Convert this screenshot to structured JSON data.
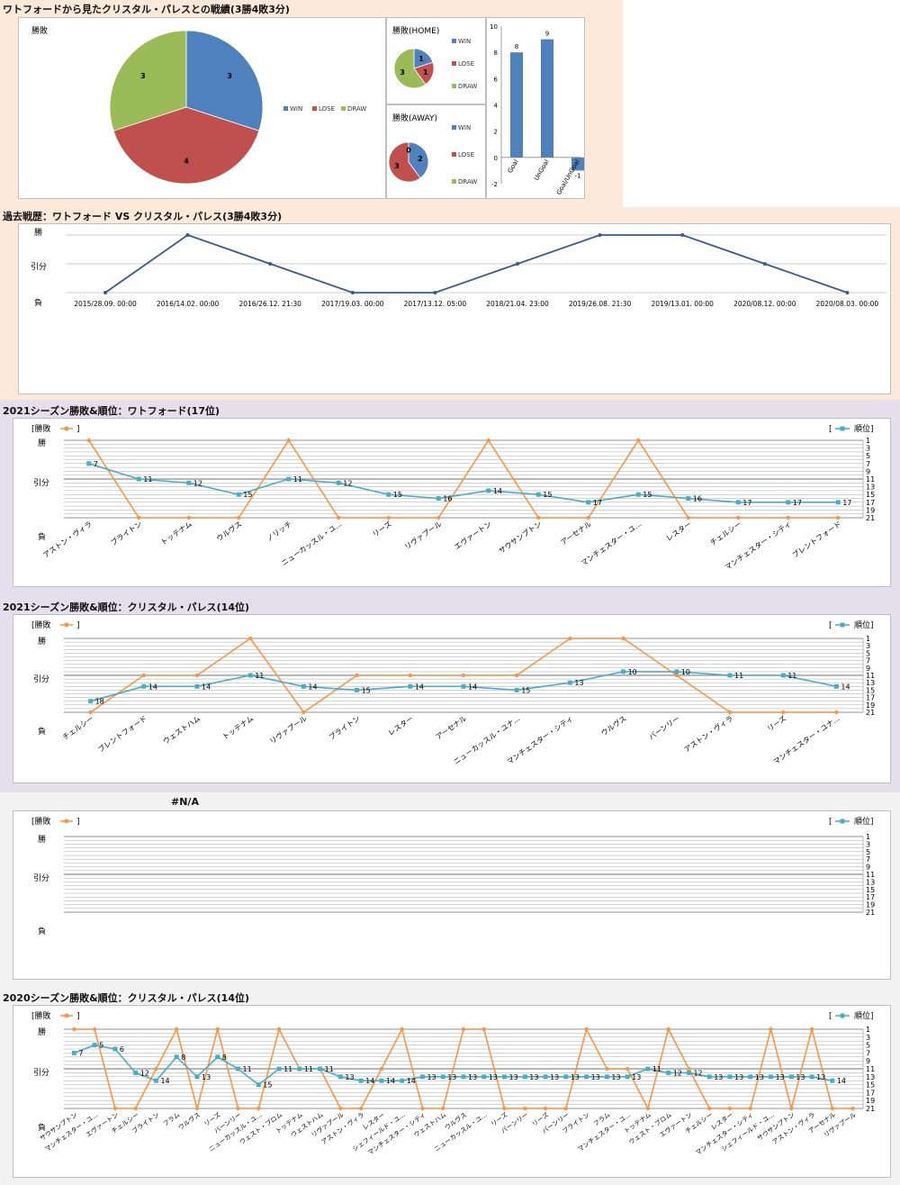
{
  "sections": {
    "summary_title": "ワトフォードから見たクリスタル・パレスとの戦績(3勝4敗3分)",
    "history_title": "過去戦歴：ワトフォード VS クリスタル・パレス(3勝4敗3分)",
    "watford_title": "2021シーズン勝敗&順位：ワトフォード(17位)",
    "palace_title": "2021シーズン勝敗&順位：クリスタル・パレス(14位)",
    "na_title": "#N/A",
    "palace2020_title": "2020シーズン勝敗&順位：クリスタル・パレス(14位)"
  },
  "legend_labels": {
    "result": "[勝敗",
    "rank": "順位]",
    "close": "]",
    "open": "["
  },
  "colors": {
    "win": "#4f81bd",
    "lose": "#c0504d",
    "draw": "#9bbb59",
    "line": "#1f3864",
    "orange": "#f79646",
    "teal": "#4bacc6"
  },
  "y_cat_labels": [
    "勝",
    "引分",
    "負"
  ],
  "rank_ticks": [
    "1",
    "3",
    "5",
    "7",
    "9",
    "11",
    "13",
    "15",
    "17",
    "19",
    "21"
  ],
  "chart_data": [
    {
      "id": "pie_total",
      "type": "pie",
      "title": "勝敗",
      "categories": [
        "WIN",
        "LOSE",
        "DRAW"
      ],
      "values": [
        3,
        4,
        3
      ]
    },
    {
      "id": "pie_home",
      "type": "pie",
      "title": "勝敗(HOME)",
      "categories": [
        "WIN",
        "LOSE",
        "DRAW"
      ],
      "values": [
        1,
        1,
        3
      ]
    },
    {
      "id": "pie_away",
      "type": "pie",
      "title": "勝敗(AWAY)",
      "categories": [
        "WIN",
        "LOSE",
        "DRAW"
      ],
      "values": [
        2,
        3,
        0
      ]
    },
    {
      "id": "goals",
      "type": "bar",
      "categories": [
        "Goal",
        "UnGoal",
        "Goal/UnGoal"
      ],
      "values": [
        8,
        9,
        -1
      ],
      "ylim": [
        -2,
        10
      ],
      "yticks": [
        10,
        8,
        6,
        4,
        2,
        0,
        -2
      ]
    },
    {
      "id": "history",
      "type": "line",
      "x": [
        "2015/28.09. 00:00",
        "2016/14.02. 00:00",
        "2016/26.12. 21:30",
        "2017/19.03. 00:00",
        "2017/13.12. 05:00",
        "2018/21.04. 23:00",
        "2019/26.08. 21:30",
        "2019/13.01. 00:00",
        "2020/08.12. 00:00",
        "2020/08.03. 00:00"
      ],
      "results": [
        "負",
        "勝",
        "引分",
        "負",
        "負",
        "引分",
        "勝",
        "勝",
        "引分",
        "負"
      ]
    },
    {
      "id": "watford2021",
      "type": "line",
      "x": [
        "アストン・ヴィラ",
        "ブライトン",
        "トッテナム",
        "ウルヴス",
        "ノリッチ",
        "ニューカッスル・ユ...",
        "リーズ",
        "リヴァプール",
        "エヴァートン",
        "サウサンプトン",
        "アーセナル",
        "マンチェスター・ユ...",
        "レスター",
        "チェルシー",
        "マンチェスター・シティ",
        "ブレントフォード"
      ],
      "series": [
        {
          "name": "勝敗",
          "values": [
            "勝",
            "負",
            "負",
            "負",
            "勝",
            "負",
            "負",
            "負",
            "勝",
            "負",
            "負",
            "勝",
            "負",
            "負",
            "負",
            "負"
          ]
        },
        {
          "name": "順位",
          "values": [
            7,
            11,
            12,
            15,
            11,
            12,
            15,
            16,
            14,
            15,
            17,
            15,
            16,
            17,
            17,
            17
          ]
        }
      ]
    },
    {
      "id": "palace2021",
      "type": "line",
      "x": [
        "チェルシー",
        "ブレントフォード",
        "ウェストハム",
        "トッテナム",
        "リヴァプール",
        "ブライトン",
        "レスター",
        "アーセナル",
        "ニューカッスル・ユナ...",
        "マンチェスター・シティ",
        "ウルヴス",
        "バーンリー",
        "アストン・ヴィラ",
        "リーズ",
        "マンチェスター・ユナ..."
      ],
      "series": [
        {
          "name": "勝敗",
          "values": [
            "負",
            "引分",
            "引分",
            "勝",
            "負",
            "引分",
            "引分",
            "引分",
            "引分",
            "勝",
            "勝",
            "引分",
            "負",
            "負",
            "負"
          ]
        },
        {
          "name": "順位",
          "values": [
            18,
            14,
            14,
            11,
            14,
            15,
            14,
            14,
            15,
            13,
            10,
            10,
            11,
            11,
            14
          ]
        }
      ]
    },
    {
      "id": "na_chart",
      "type": "line",
      "x": [],
      "series": [
        {
          "name": "勝敗",
          "values": []
        },
        {
          "name": "順位",
          "values": []
        }
      ]
    },
    {
      "id": "palace2020",
      "type": "line",
      "x": [
        "サウサンプトン",
        "マンチェスター・ユ...",
        "エヴァートン",
        "チェルシー",
        "ブライトン",
        "フラム",
        "ウルヴス",
        "リーズ",
        "バーンリー",
        "ニューカッスル・ユ...",
        "ウェスト・ブロム",
        "トッテナム",
        "ウェストハム",
        "リヴァプール",
        "アストン・ヴィラ",
        "レスター",
        "シェフィールド・ユ...",
        "マンチェスター・シティ",
        "ウェストハム",
        "ウルヴス",
        "ニューカッスル・ユ...",
        "リーズ",
        "バーンリー",
        "リーズ",
        "バーンリー",
        "ブライトン",
        "フラム",
        "マンチェスター・ユ...",
        "トッテナム",
        "ウェスト・ブロム",
        "エヴァートン",
        "チェルシー",
        "レスター",
        "マンチェスター・シティ",
        "シェフィールド・ユ...",
        "サウサンプトン",
        "アストン・ヴィラ",
        "アーセナル",
        "リヴァプール"
      ],
      "series": [
        {
          "name": "勝敗",
          "values": [
            "勝",
            "勝",
            "負",
            "負",
            "引分",
            "勝",
            "負",
            "勝",
            "負",
            "負",
            "勝",
            "引分",
            "引分",
            "負",
            "負",
            "引分",
            "勝",
            "負",
            "負",
            "勝",
            "勝",
            "負",
            "負",
            "負",
            "負",
            "勝",
            "引分",
            "引分",
            "負",
            "勝",
            "引分",
            "負",
            "負",
            "負",
            "勝",
            "負",
            "勝",
            "負",
            "負"
          ]
        },
        {
          "name": "順位",
          "values": [
            7,
            5,
            6,
            12,
            14,
            8,
            13,
            8,
            11,
            15,
            11,
            11,
            11,
            13,
            14,
            14,
            14,
            13,
            13,
            13,
            13,
            13,
            13,
            13,
            13,
            13,
            13,
            13,
            11,
            12,
            12,
            13,
            13,
            13,
            13,
            13,
            13,
            14,
            null
          ]
        }
      ]
    }
  ]
}
